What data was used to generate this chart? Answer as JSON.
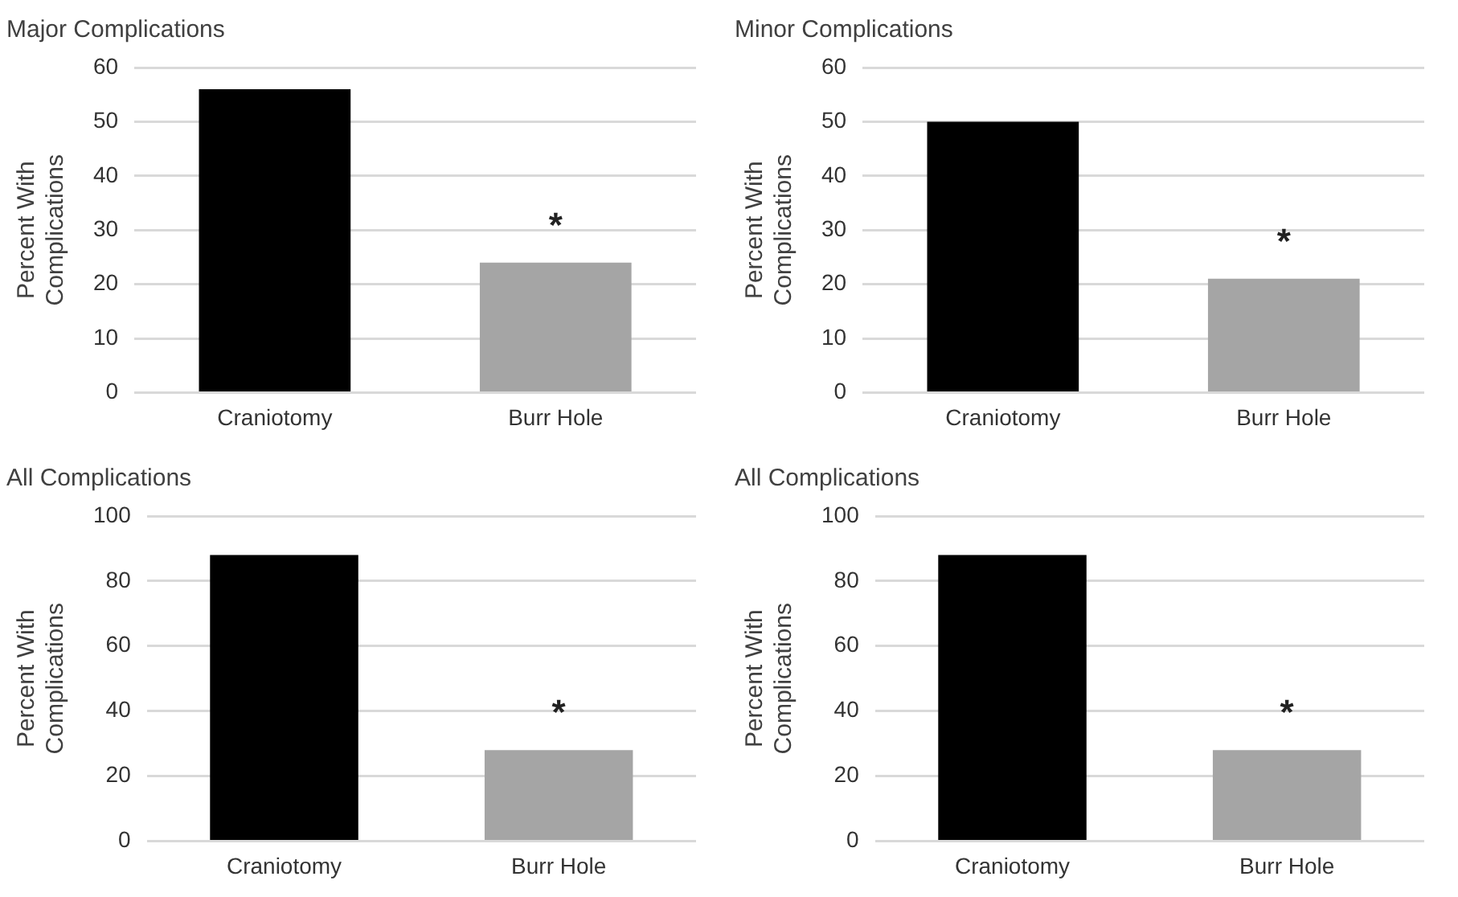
{
  "chart_data": [
    {
      "type": "bar",
      "title": "Major Complications",
      "ylabel": "Percent With Complications",
      "categories": [
        "Craniotomy",
        "Burr Hole"
      ],
      "values": [
        56,
        24
      ],
      "colors": [
        "#000000",
        "#a5a5a5"
      ],
      "ylim": [
        0,
        60
      ],
      "yticks": [
        0,
        10,
        20,
        30,
        40,
        50,
        60
      ],
      "grid": "y",
      "legend": false,
      "annotations": [
        "*"
      ]
    },
    {
      "type": "bar",
      "title": "Minor Complications",
      "ylabel": "Percent With Complications",
      "categories": [
        "Craniotomy",
        "Burr Hole"
      ],
      "values": [
        50,
        21
      ],
      "colors": [
        "#000000",
        "#a5a5a5"
      ],
      "ylim": [
        0,
        60
      ],
      "yticks": [
        0,
        10,
        20,
        30,
        40,
        50,
        60
      ],
      "grid": "y",
      "legend": false,
      "annotations": [
        "*"
      ]
    },
    {
      "type": "bar",
      "title": "All Complications",
      "ylabel": "Percent With Complications",
      "categories": [
        "Craniotomy",
        "Burr Hole"
      ],
      "values": [
        88,
        28
      ],
      "colors": [
        "#000000",
        "#a5a5a5"
      ],
      "ylim": [
        0,
        100
      ],
      "yticks": [
        0,
        20,
        40,
        60,
        80,
        100
      ],
      "grid": "y",
      "legend": false,
      "annotations": [
        "*"
      ]
    },
    {
      "type": "bar",
      "title": "All Complications",
      "ylabel": "Percent With Complications",
      "categories": [
        "Craniotomy",
        "Burr Hole"
      ],
      "values": [
        88,
        28
      ],
      "colors": [
        "#000000",
        "#a5a5a5"
      ],
      "ylim": [
        0,
        100
      ],
      "yticks": [
        0,
        20,
        40,
        60,
        80,
        100
      ],
      "grid": "y",
      "legend": false,
      "annotations": [
        "*"
      ]
    }
  ]
}
